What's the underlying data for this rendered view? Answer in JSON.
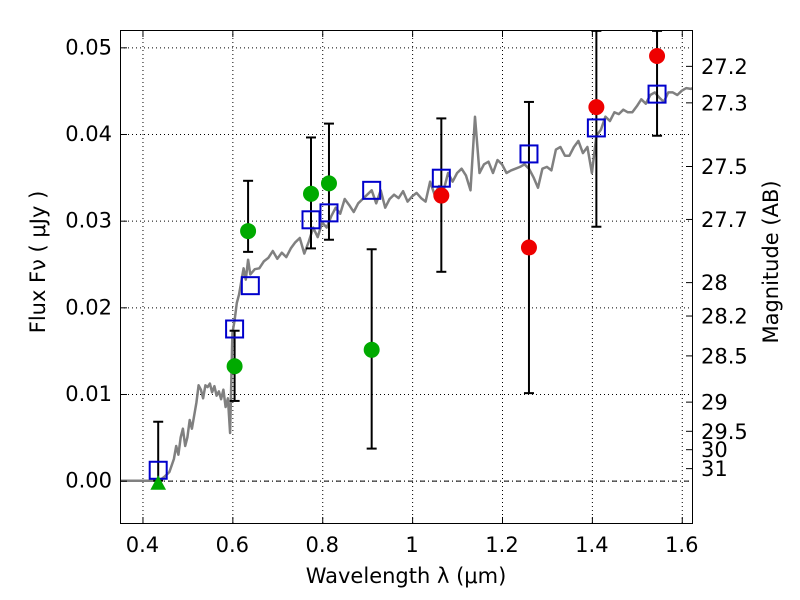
{
  "chart_data": {
    "type": "scatter",
    "xlabel": "Wavelength  λ (μm)",
    "ylabel": "Flux  Fν  ( μJy )",
    "y2label": "Magnitude (AB)",
    "xlim": [
      0.35,
      1.625
    ],
    "ylim": [
      -0.005,
      0.052
    ],
    "grid": true,
    "xticks": [
      0.4,
      0.6,
      0.8,
      1.0,
      1.2,
      1.4,
      1.6
    ],
    "xtick_labels": [
      "0.4",
      "0.6",
      "0.8",
      "1",
      "1.2",
      "1.4",
      "1.6"
    ],
    "yticks": [
      0.0,
      0.01,
      0.02,
      0.03,
      0.04,
      0.05
    ],
    "ytick_labels": [
      "0.00",
      "0.01",
      "0.02",
      "0.03",
      "0.04",
      "0.05"
    ],
    "magnitude_ticks": [
      "27.2",
      "27.3",
      "27.5",
      "27.7",
      "28",
      "28.2",
      "28.5",
      "29",
      "29.5",
      "30",
      "31"
    ],
    "series": [
      {
        "marker": "line",
        "color": "#808080",
        "x": [
          0.35,
          0.43,
          0.44,
          0.45,
          0.46,
          0.47,
          0.475,
          0.48,
          0.485,
          0.49,
          0.495,
          0.5,
          0.505,
          0.51,
          0.52,
          0.525,
          0.53,
          0.535,
          0.54,
          0.545,
          0.55,
          0.555,
          0.56,
          0.565,
          0.57,
          0.575,
          0.58,
          0.585,
          0.59,
          0.595,
          0.6,
          0.605,
          0.61,
          0.615,
          0.62,
          0.625,
          0.63,
          0.635,
          0.64,
          0.65,
          0.66,
          0.67,
          0.68,
          0.69,
          0.7,
          0.71,
          0.72,
          0.73,
          0.74,
          0.75,
          0.76,
          0.77,
          0.78,
          0.79,
          0.8,
          0.81,
          0.82,
          0.83,
          0.84,
          0.85,
          0.86,
          0.87,
          0.88,
          0.89,
          0.9,
          0.91,
          0.92,
          0.93,
          0.94,
          0.95,
          0.96,
          0.97,
          0.98,
          0.99,
          1.0,
          1.01,
          1.02,
          1.03,
          1.04,
          1.05,
          1.06,
          1.07,
          1.08,
          1.09,
          1.1,
          1.11,
          1.12,
          1.13,
          1.14,
          1.15,
          1.16,
          1.17,
          1.18,
          1.19,
          1.2,
          1.21,
          1.22,
          1.23,
          1.24,
          1.25,
          1.26,
          1.27,
          1.28,
          1.29,
          1.3,
          1.31,
          1.32,
          1.33,
          1.34,
          1.35,
          1.36,
          1.37,
          1.38,
          1.39,
          1.4,
          1.41,
          1.42,
          1.43,
          1.44,
          1.45,
          1.46,
          1.47,
          1.48,
          1.49,
          1.5,
          1.51,
          1.52,
          1.53,
          1.54,
          1.55,
          1.56,
          1.57,
          1.58,
          1.59,
          1.6,
          1.61,
          1.62,
          1.625
        ],
        "y": [
          0.0,
          0.0,
          0.0001,
          0.0005,
          0.001,
          0.0025,
          0.004,
          0.003,
          0.005,
          0.006,
          0.004,
          0.005,
          0.007,
          0.006,
          0.009,
          0.011,
          0.0105,
          0.0095,
          0.011,
          0.0108,
          0.0112,
          0.0102,
          0.0109,
          0.0098,
          0.0103,
          0.0094,
          0.0105,
          0.0085,
          0.0095,
          0.0055,
          0.017,
          0.0185,
          0.0205,
          0.0215,
          0.023,
          0.0245,
          0.0232,
          0.0255,
          0.0238,
          0.0244,
          0.0245,
          0.0253,
          0.0257,
          0.0265,
          0.0256,
          0.0263,
          0.0258,
          0.0268,
          0.0275,
          0.028,
          0.0262,
          0.0276,
          0.0292,
          0.0281,
          0.0298,
          0.0292,
          0.0305,
          0.0315,
          0.0308,
          0.0325,
          0.0318,
          0.031,
          0.032,
          0.0325,
          0.033,
          0.0335,
          0.032,
          0.0335,
          0.0315,
          0.0325,
          0.033,
          0.0326,
          0.0334,
          0.0322,
          0.0328,
          0.0332,
          0.0326,
          0.0322,
          0.0345,
          0.033,
          0.034,
          0.0335,
          0.0355,
          0.0345,
          0.0355,
          0.036,
          0.0352,
          0.0335,
          0.042,
          0.0355,
          0.0365,
          0.0368,
          0.0355,
          0.037,
          0.0365,
          0.0355,
          0.0358,
          0.036,
          0.0362,
          0.0365,
          0.036,
          0.035,
          0.0338,
          0.036,
          0.0362,
          0.0358,
          0.0382,
          0.0385,
          0.0375,
          0.0375,
          0.0385,
          0.0392,
          0.0378,
          0.0385,
          0.0355,
          0.0398,
          0.0405,
          0.042,
          0.0415,
          0.0425,
          0.0423,
          0.0428,
          0.0425,
          0.0425,
          0.0432,
          0.044,
          0.0435,
          0.0445,
          0.0448,
          0.0442,
          0.0437,
          0.0448,
          0.0448,
          0.0445,
          0.045,
          0.0453,
          0.0452,
          0.0453
        ]
      },
      {
        "marker": "open-square",
        "color": "#0000cc",
        "x": [
          0.435,
          0.605,
          0.64,
          0.775,
          0.815,
          0.91,
          1.065,
          1.26,
          1.41,
          1.545
        ],
        "y": [
          0.0012,
          0.0175,
          0.0225,
          0.0301,
          0.0309,
          0.0335,
          0.0349,
          0.0377,
          0.0407,
          0.0446
        ]
      },
      {
        "marker": "circle",
        "color": "#00aa00",
        "x": [
          0.605,
          0.635,
          0.775,
          0.815,
          0.91
        ],
        "y": [
          0.0132,
          0.0288,
          0.0331,
          0.0343,
          0.0151
        ],
        "yerr_low": [
          0.0092,
          0.0264,
          0.0268,
          0.0278,
          0.0037
        ],
        "yerr_high": [
          0.0173,
          0.0346,
          0.0396,
          0.0412,
          0.0267
        ]
      },
      {
        "marker": "triangle",
        "color": "#00aa00",
        "x": [
          0.435
        ],
        "y": [
          -0.0003
        ],
        "yerr_low": [
          0.0
        ],
        "yerr_high": [
          0.0068
        ]
      },
      {
        "marker": "circle",
        "color": "#ee0000",
        "x": [
          1.065,
          1.26,
          1.41,
          1.545
        ],
        "y": [
          0.0329,
          0.0269,
          0.0431,
          0.049
        ],
        "yerr_low": [
          0.0241,
          0.0101,
          0.0293,
          0.0398
        ],
        "yerr_high": [
          0.0418,
          0.0437,
          0.0519,
          0.0519
        ]
      }
    ]
  }
}
